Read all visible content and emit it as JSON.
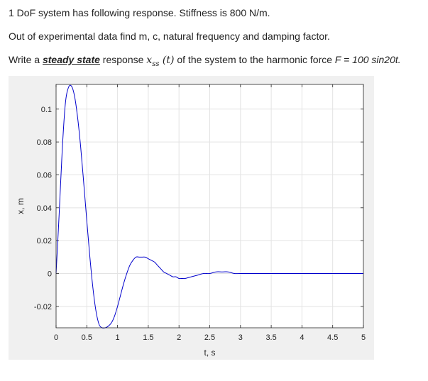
{
  "problem": {
    "line1": "1 DoF system has following response. Stiffness is 800 N/m.",
    "line2": "Out of experimental data find m, c, natural frequency and damping factor.",
    "line3_prefix": "Write a ",
    "line3_emphasis": "steady state",
    "line3_mid": " response ",
    "line3_math_var": "x",
    "line3_math_sub": "ss",
    "line3_math_arg": " (t)",
    "line3_mid2": " of the system to the harmonic force ",
    "line3_force": "F = 100 sin20t."
  },
  "chart_data": {
    "type": "line",
    "title": "",
    "xlabel": "t, s",
    "ylabel": "x, m",
    "xlim": [
      0,
      5
    ],
    "ylim": [
      -0.033,
      0.115
    ],
    "xticks": [
      0,
      0.5,
      1,
      1.5,
      2,
      2.5,
      3,
      3.5,
      4,
      4.5,
      5
    ],
    "xtick_labels": [
      "0",
      "0.5",
      "1",
      "1.5",
      "2",
      "2.5",
      "3",
      "3.5",
      "4",
      "4.5",
      "5"
    ],
    "yticks": [
      -0.02,
      0,
      0.02,
      0.04,
      0.06,
      0.08,
      0.1
    ],
    "ytick_labels": [
      "-0.02",
      "0",
      "0.02",
      "0.04",
      "0.06",
      "0.08",
      "0.1"
    ],
    "grid": true,
    "line_color": "#0000cc",
    "series": [
      {
        "x": [
          0,
          0.05,
          0.1,
          0.15,
          0.2,
          0.25,
          0.3,
          0.35,
          0.4,
          0.45,
          0.5,
          0.55,
          0.6,
          0.65,
          0.7,
          0.75,
          0.8,
          0.85,
          0.9,
          0.95,
          1.0,
          1.05,
          1.1,
          1.15,
          1.2,
          1.25,
          1.3,
          1.35,
          1.4,
          1.45,
          1.5,
          1.55,
          1.6,
          1.65,
          1.7,
          1.75,
          1.8,
          1.85,
          1.9,
          1.95,
          2.0,
          2.05,
          2.1,
          2.2,
          2.3,
          2.4,
          2.5,
          2.6,
          2.7,
          2.8,
          2.9,
          3.0,
          3.2,
          3.4,
          3.6,
          3.8,
          4.0,
          4.2,
          4.4,
          4.6,
          4.8,
          5.0
        ],
        "y": [
          0,
          0.036,
          0.075,
          0.103,
          0.113,
          0.114,
          0.108,
          0.095,
          0.077,
          0.055,
          0.032,
          0.01,
          -0.009,
          -0.023,
          -0.031,
          -0.033,
          -0.033,
          -0.032,
          -0.03,
          -0.026,
          -0.02,
          -0.013,
          -0.006,
          0.0,
          0.005,
          0.008,
          0.01,
          0.01,
          0.01,
          0.01,
          0.009,
          0.008,
          0.007,
          0.005,
          0.003,
          0.001,
          0.0,
          -0.001,
          -0.002,
          -0.002,
          -0.003,
          -0.003,
          -0.003,
          -0.002,
          -0.001,
          0.0,
          0.0,
          0.001,
          0.001,
          0.001,
          0.0,
          0.0,
          0.0,
          0.0,
          0.0,
          0.0,
          0.0,
          0.0,
          0.0,
          0.0,
          0.0,
          0.0
        ]
      }
    ]
  }
}
